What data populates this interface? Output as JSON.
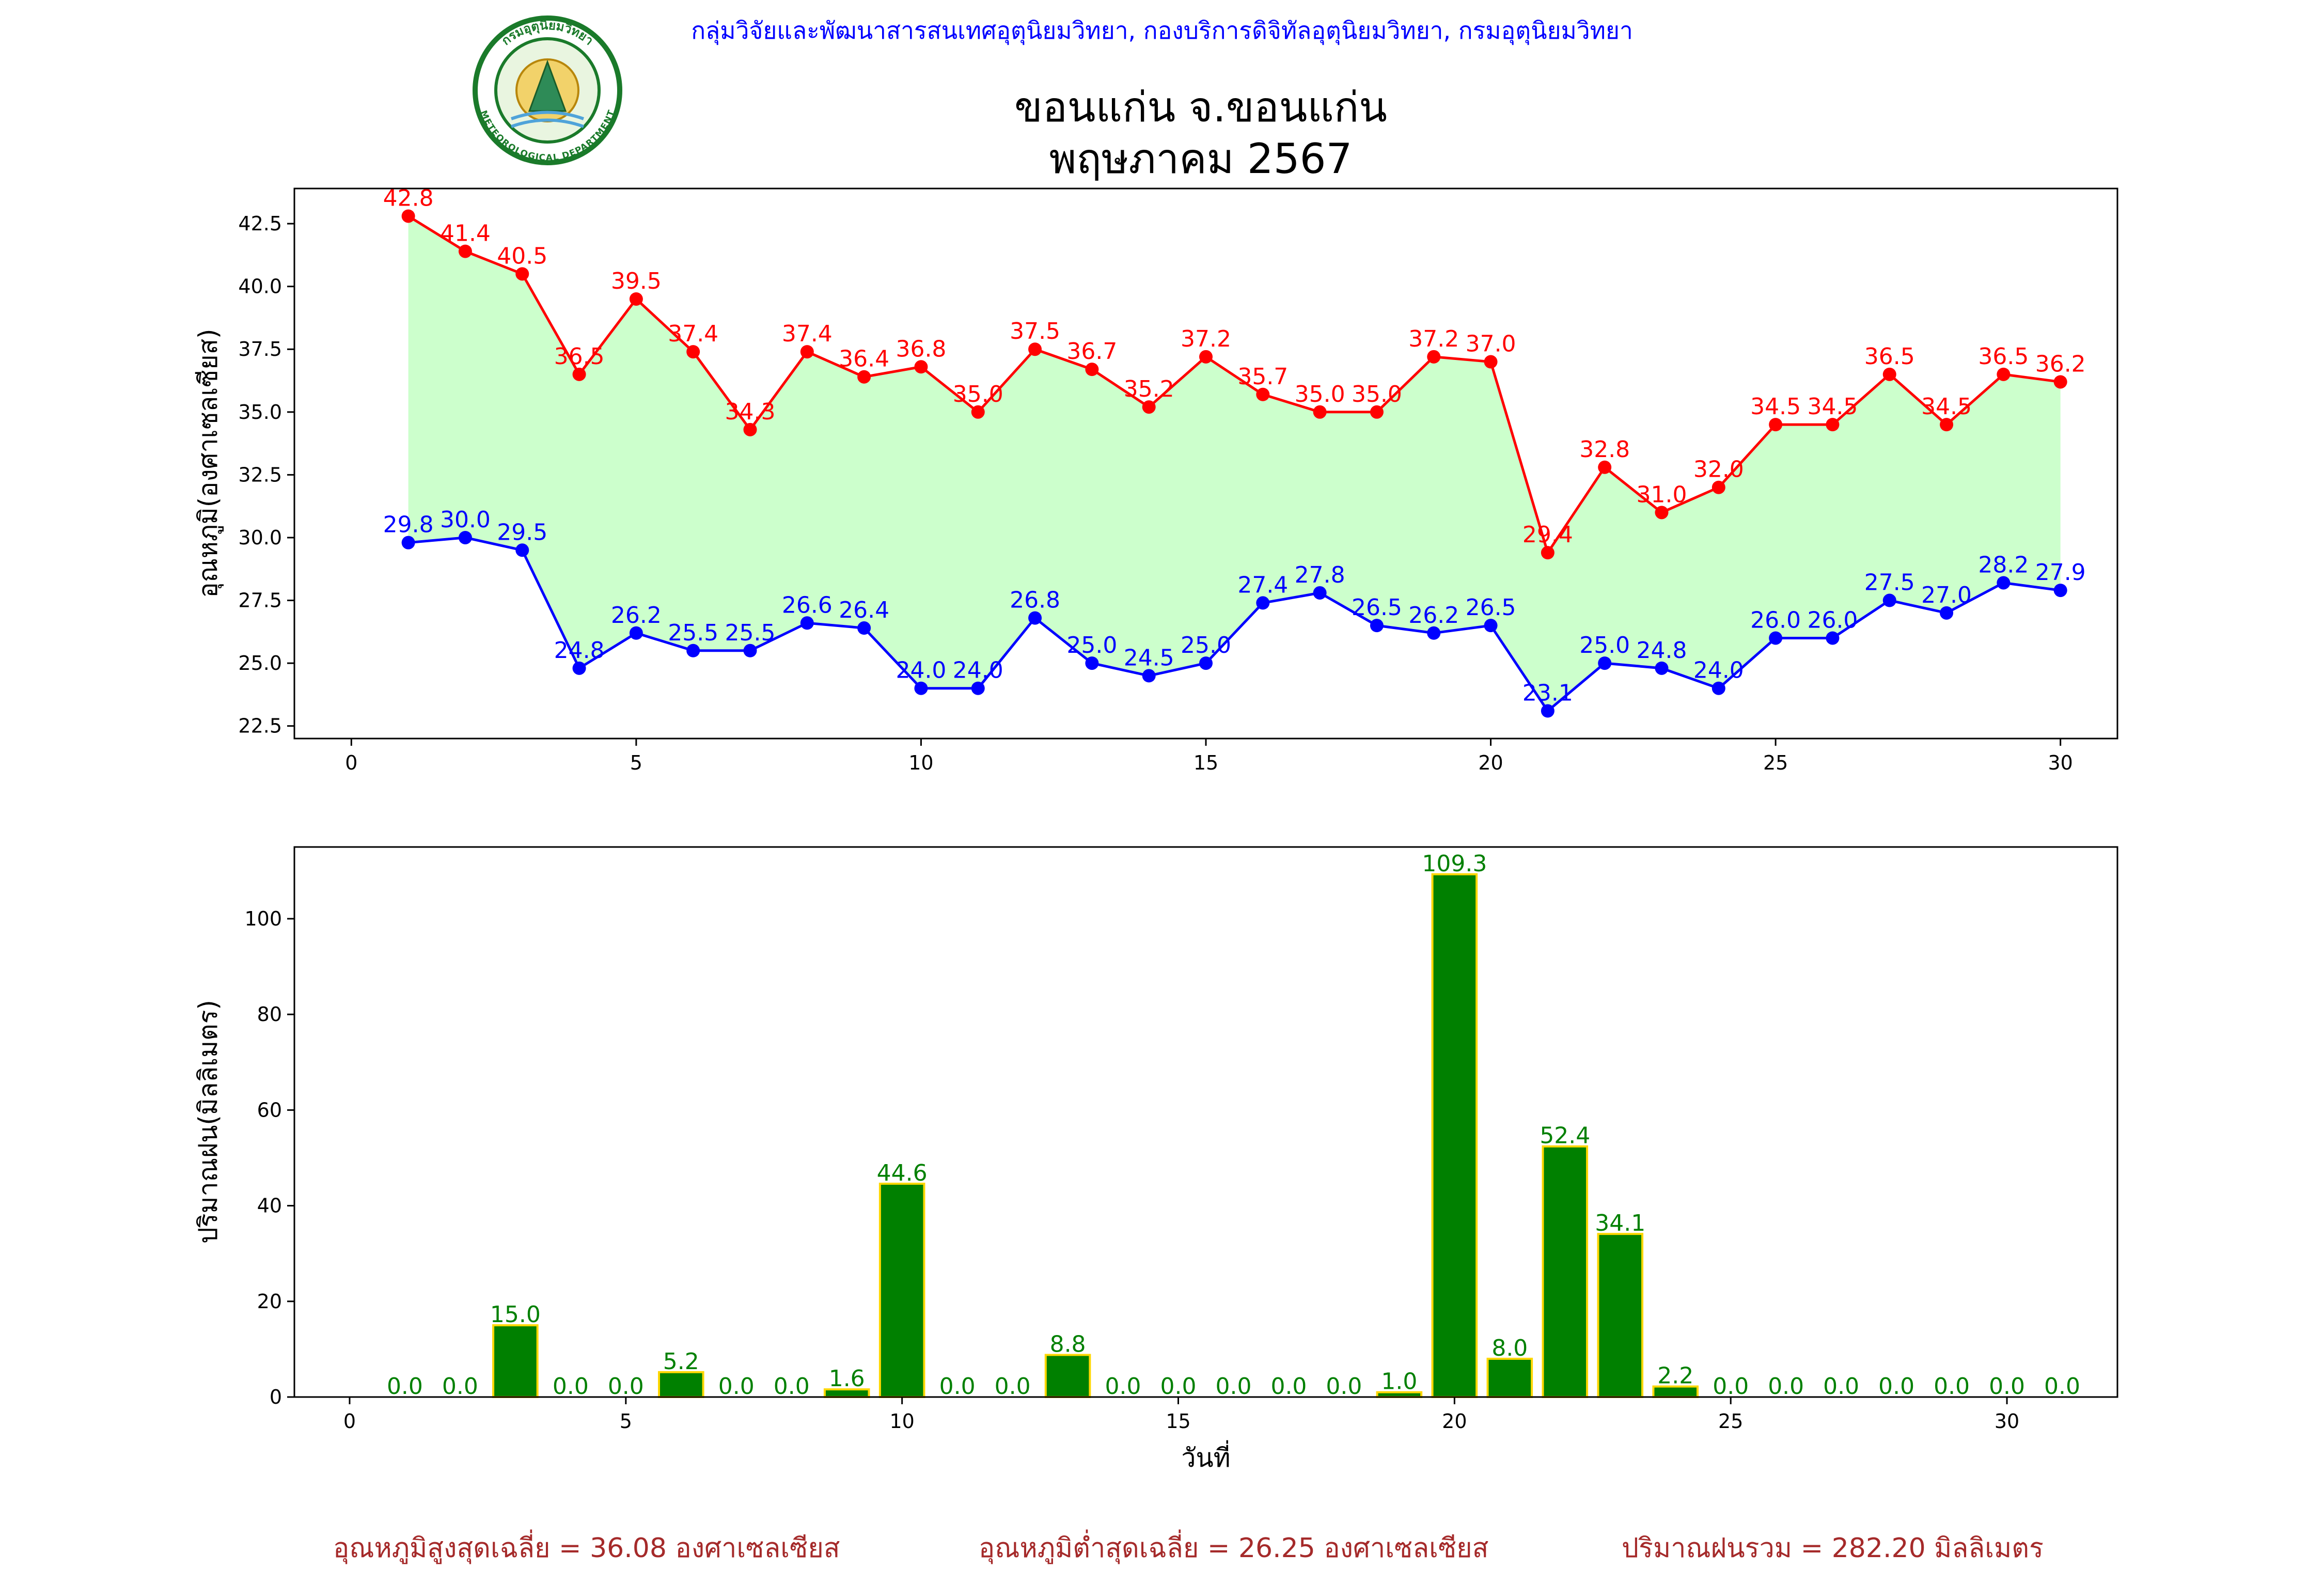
{
  "header": {
    "agency": "กลุ่มวิจัยและพัฒนาสารสนเทศอุตุนิยมวิทยา, กองบริการดิจิทัลอุตุนิยมวิทยา, กรมอุตุนิยมวิทยา",
    "station": "ขอนแก่น จ.ขอนแก่น",
    "period": "พฤษภาคม 2567",
    "logo_text_top": "กรมอุตุนิยมวิทยา",
    "logo_text_bottom": "METEOROLOGICAL DEPARTMENT"
  },
  "colors": {
    "max": "#ff0000",
    "min": "#0000ff",
    "fill": "#ccffcc",
    "bar": "#008000",
    "bar_edge": "#ffd700",
    "footer": "#a52a2a",
    "header": "#0000ff"
  },
  "chart_data": [
    {
      "type": "line",
      "ylabel": "อุณหภูมิ(องศาเซลเซียส)",
      "xlabel": "",
      "xlim": [
        -1,
        31
      ],
      "ylim": [
        22.0,
        43.9
      ],
      "xticks": [
        0,
        5,
        10,
        15,
        20,
        25,
        30
      ],
      "yticks": [
        22.5,
        25.0,
        27.5,
        30.0,
        32.5,
        35.0,
        37.5,
        40.0,
        42.5
      ],
      "x": [
        1,
        2,
        3,
        4,
        5,
        6,
        7,
        8,
        9,
        10,
        11,
        12,
        13,
        14,
        15,
        16,
        17,
        18,
        19,
        20,
        21,
        22,
        23,
        24,
        25,
        26,
        27,
        28,
        29,
        30
      ],
      "series": [
        {
          "key": "max",
          "values": [
            42.8,
            41.4,
            40.5,
            36.5,
            39.5,
            37.4,
            34.3,
            37.4,
            36.4,
            36.8,
            35.0,
            37.5,
            36.7,
            35.2,
            37.2,
            35.7,
            35.0,
            35.0,
            37.2,
            37.0,
            29.4,
            32.8,
            31.0,
            32.0,
            34.5,
            34.5,
            36.5,
            34.5,
            36.5,
            36.2
          ]
        },
        {
          "key": "min",
          "values": [
            29.8,
            30.0,
            29.5,
            24.8,
            26.2,
            25.5,
            25.5,
            26.6,
            26.4,
            24.0,
            24.0,
            26.8,
            25.0,
            24.5,
            25.0,
            27.4,
            27.8,
            26.5,
            26.2,
            26.5,
            23.1,
            25.0,
            24.8,
            24.0,
            26.0,
            26.0,
            27.5,
            27.0,
            28.2,
            27.9
          ]
        }
      ],
      "fill_between": true,
      "grid": false
    },
    {
      "type": "bar",
      "ylabel": "ปริมาณฝน(มิลลิเมตร)",
      "xlabel": "วันที่",
      "xlim": [
        -1,
        32
      ],
      "ylim": [
        0,
        115
      ],
      "xticks": [
        0,
        5,
        10,
        15,
        20,
        25,
        30
      ],
      "yticks": [
        0,
        20,
        40,
        60,
        80,
        100
      ],
      "x": [
        1,
        2,
        3,
        4,
        5,
        6,
        7,
        8,
        9,
        10,
        11,
        12,
        13,
        14,
        15,
        16,
        17,
        18,
        19,
        20,
        21,
        22,
        23,
        24,
        25,
        26,
        27,
        28,
        29,
        30,
        31
      ],
      "values": [
        0.0,
        0.0,
        15.0,
        0.0,
        0.0,
        5.2,
        0.0,
        0.0,
        1.6,
        44.6,
        0.0,
        0.0,
        8.8,
        0.0,
        0.0,
        0.0,
        0.0,
        0.0,
        1.0,
        109.3,
        8.0,
        52.4,
        34.1,
        2.2,
        0.0,
        0.0,
        0.0,
        0.0,
        0.0,
        0.0,
        0.0
      ],
      "grid": false
    }
  ],
  "footer": {
    "avg_max": "อุณหภูมิสูงสุดเฉลี่ย = 36.08 องศาเซลเซียส",
    "avg_min": "อุณหภูมิต่ำสุดเฉลี่ย = 26.25 องศาเซลเซียส",
    "total_rain": "ปริมาณฝนรวม = 282.20 มิลลิเมตร"
  }
}
